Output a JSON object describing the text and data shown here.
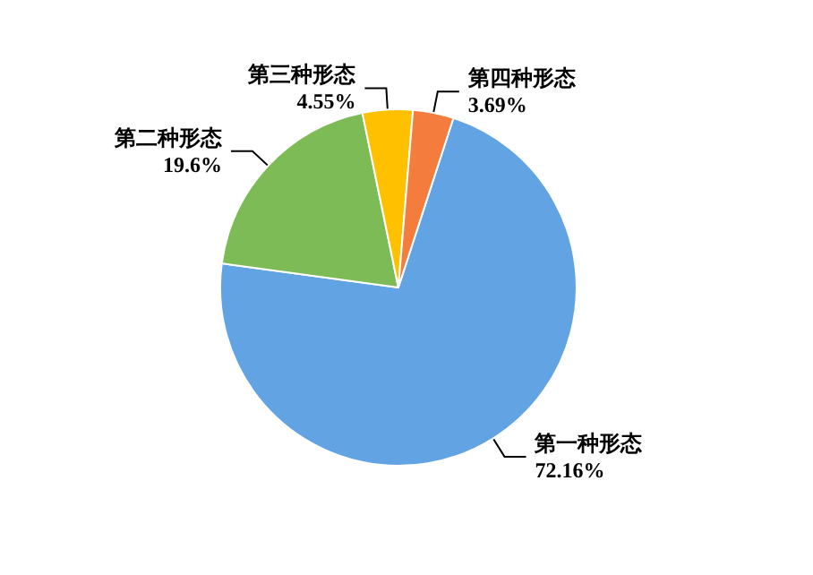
{
  "chart_data": {
    "type": "pie",
    "categories": [
      "第一种形态",
      "第二种形态",
      "第三种形态",
      "第四种形态"
    ],
    "values": [
      72.16,
      19.6,
      4.55,
      3.69
    ],
    "value_labels": [
      "72.16%",
      "19.6%",
      "4.55%",
      "3.69%"
    ],
    "colors": [
      "#62a3e4",
      "#7cbb55",
      "#ffc000",
      "#f47c3c"
    ],
    "legend": false
  }
}
